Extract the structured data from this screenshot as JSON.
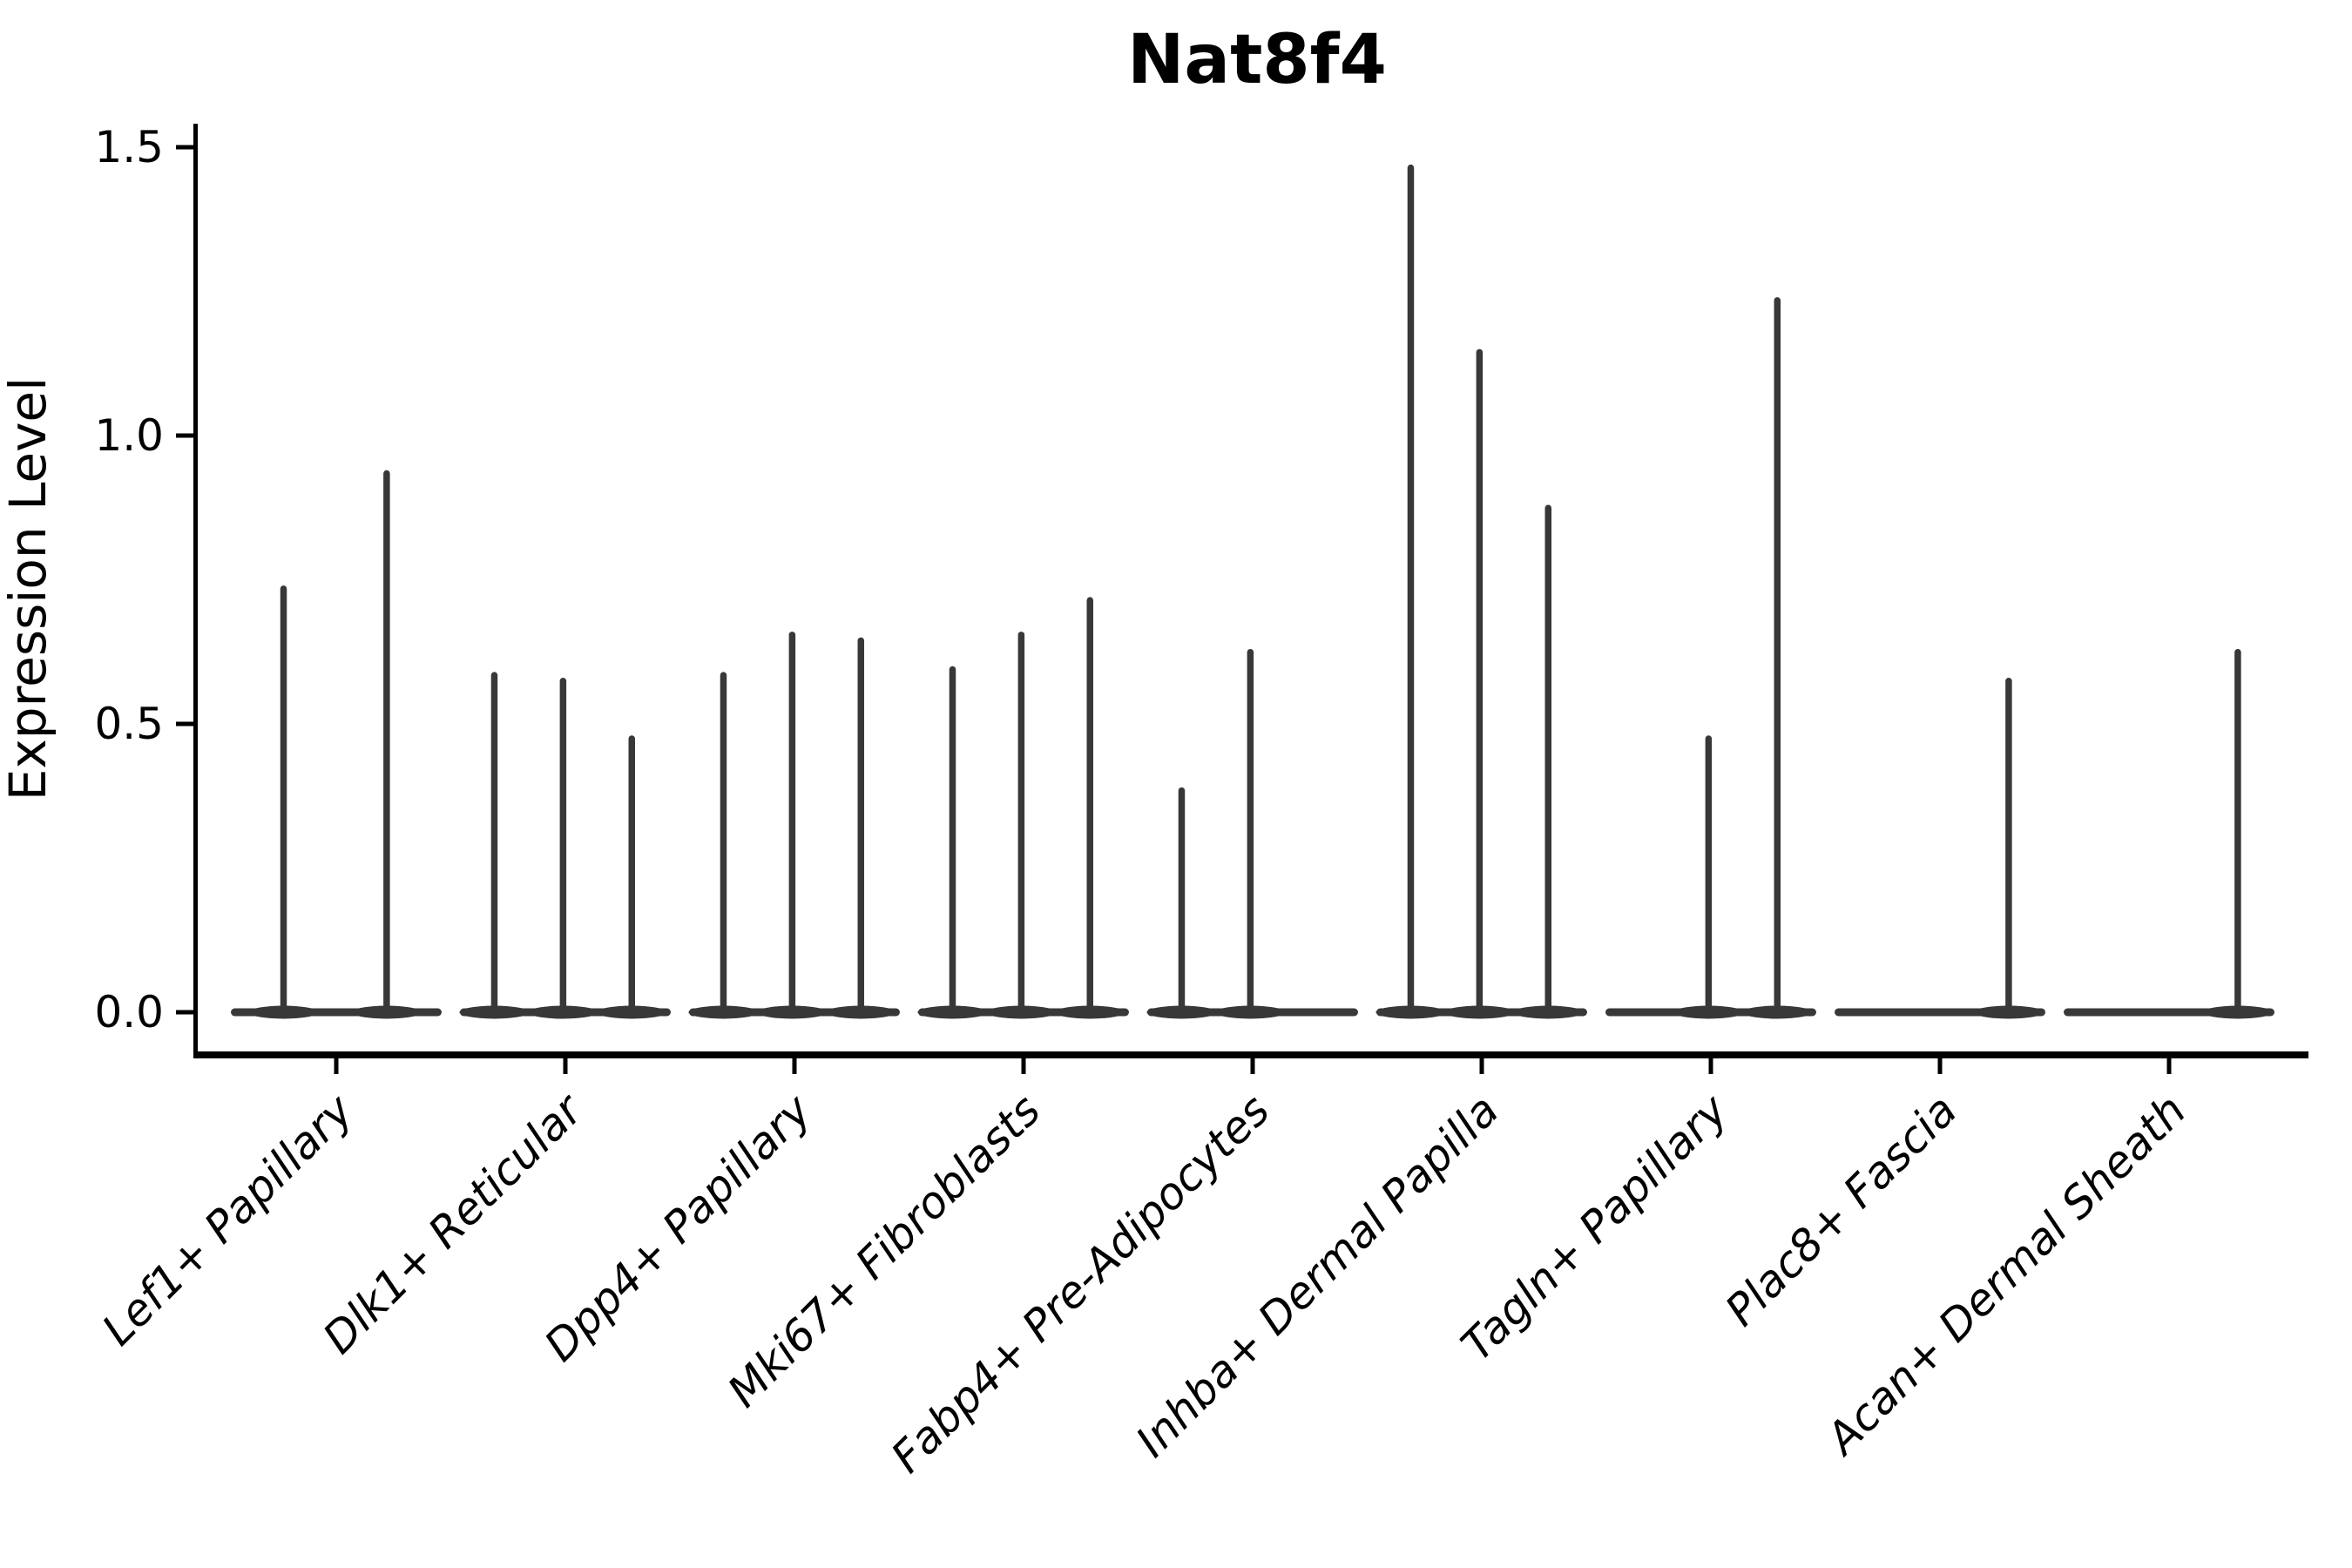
{
  "title": "Nat8f4",
  "ylabel": "Expression Level",
  "colors": {
    "violin": "#383838",
    "axis": "#000000",
    "background": "#ffffff"
  },
  "chart_data": {
    "type": "violin",
    "title": "Nat8f4",
    "xlabel": "",
    "ylabel": "Expression Level",
    "ylim": [
      0,
      1.5
    ],
    "yticks": [
      0.0,
      0.5,
      1.0,
      1.5
    ],
    "ytick_labels": [
      "0.0",
      "0.5",
      "1.0",
      "1.5"
    ],
    "grid": false,
    "legend": "none",
    "categories": [
      "Lef1+ Papillary",
      "Dlk1+ Reticular",
      "Dpp4+ Papillary",
      "Mki67+ Fibroblasts",
      "Fabp4+ Pre-Adipocytes",
      "Inhba+ Dermal Papilla",
      "Tagln+ Papillary",
      "Plac8+ Fascia",
      "Acan+ Dermal Sheath"
    ],
    "violins": [
      {
        "category": "Lef1+ Papillary",
        "base_halfwidth": 0.46,
        "spikes": [
          {
            "pos": -0.23,
            "max": 0.74
          },
          {
            "pos": 0.22,
            "max": 0.94
          }
        ]
      },
      {
        "category": "Dlk1+ Reticular",
        "base_halfwidth": 0.46,
        "spikes": [
          {
            "pos": -0.31,
            "max": 0.59
          },
          {
            "pos": -0.01,
            "max": 0.58
          },
          {
            "pos": 0.29,
            "max": 0.48
          }
        ]
      },
      {
        "category": "Dpp4+ Papillary",
        "base_halfwidth": 0.46,
        "spikes": [
          {
            "pos": -0.31,
            "max": 0.59
          },
          {
            "pos": -0.01,
            "max": 0.66
          },
          {
            "pos": 0.29,
            "max": 0.65
          }
        ]
      },
      {
        "category": "Mki67+ Fibroblasts",
        "base_halfwidth": 0.46,
        "spikes": [
          {
            "pos": -0.31,
            "max": 0.6
          },
          {
            "pos": -0.01,
            "max": 0.66
          },
          {
            "pos": 0.29,
            "max": 0.72
          }
        ]
      },
      {
        "category": "Fabp4+ Pre-Adipocytes",
        "base_halfwidth": 0.46,
        "spikes": [
          {
            "pos": -0.31,
            "max": 0.39
          },
          {
            "pos": -0.01,
            "max": 0.63
          }
        ]
      },
      {
        "category": "Inhba+ Dermal Papilla",
        "base_halfwidth": 0.46,
        "spikes": [
          {
            "pos": -0.31,
            "max": 1.47
          },
          {
            "pos": -0.01,
            "max": 1.15
          },
          {
            "pos": 0.29,
            "max": 0.88
          }
        ]
      },
      {
        "category": "Tagln+ Papillary",
        "base_halfwidth": 0.46,
        "spikes": [
          {
            "pos": -0.01,
            "max": 0.48
          },
          {
            "pos": 0.29,
            "max": 1.24
          }
        ]
      },
      {
        "category": "Plac8+ Fascia",
        "base_halfwidth": 0.46,
        "spikes": [
          {
            "pos": 0.3,
            "max": 0.58
          }
        ]
      },
      {
        "category": "Acan+ Dermal Sheath",
        "base_halfwidth": 0.46,
        "spikes": [
          {
            "pos": 0.3,
            "max": 0.63
          }
        ]
      }
    ]
  }
}
